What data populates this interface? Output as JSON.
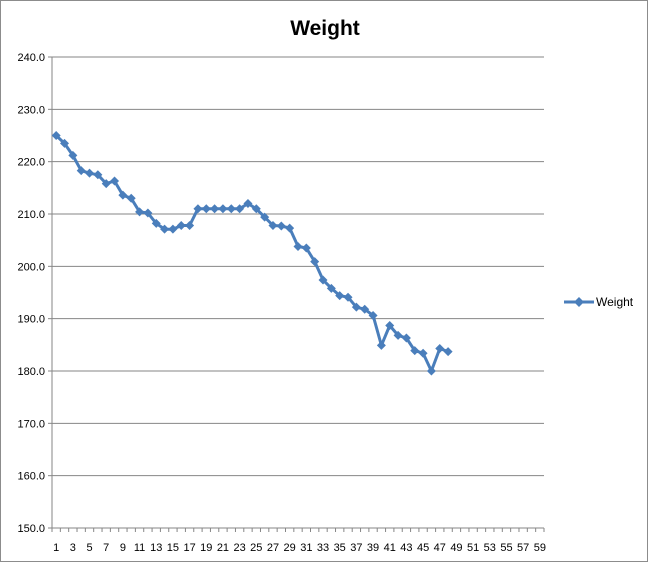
{
  "chart_data": {
    "type": "line",
    "title": "Weight",
    "xlabel": "",
    "ylabel": "",
    "xlim": [
      1,
      59
    ],
    "ylim": [
      150,
      240
    ],
    "ytick_labels": [
      "150.0",
      "160.0",
      "170.0",
      "180.0",
      "190.0",
      "200.0",
      "210.0",
      "220.0",
      "230.0",
      "240.0"
    ],
    "xtick_labels": [
      "1",
      "3",
      "5",
      "7",
      "9",
      "11",
      "13",
      "15",
      "17",
      "19",
      "21",
      "23",
      "25",
      "27",
      "29",
      "31",
      "33",
      "35",
      "37",
      "39",
      "41",
      "43",
      "45",
      "47",
      "49",
      "51",
      "53",
      "55",
      "57",
      "59"
    ],
    "grid": "horizontal",
    "legend": "right",
    "series": [
      {
        "name": "Weight",
        "color": "#4a7ebb",
        "marker": "diamond",
        "x": [
          1,
          2,
          3,
          4,
          5,
          6,
          7,
          8,
          9,
          10,
          11,
          12,
          13,
          14,
          15,
          16,
          17,
          18,
          19,
          20,
          21,
          22,
          23,
          24,
          25,
          26,
          27,
          28,
          29,
          30,
          31,
          32,
          33,
          34,
          35,
          36,
          37,
          38,
          39,
          40,
          41,
          42,
          43,
          44,
          45,
          46,
          47,
          48
        ],
        "values": [
          225.0,
          223.5,
          221.2,
          218.3,
          217.8,
          217.5,
          215.8,
          216.3,
          213.6,
          213.0,
          210.4,
          210.2,
          208.2,
          207.1,
          207.1,
          207.8,
          207.8,
          211.0,
          211.0,
          211.0,
          211.0,
          211.0,
          211.0,
          212.0,
          211.0,
          209.4,
          207.8,
          207.7,
          207.3,
          203.8,
          203.5,
          200.9,
          197.4,
          195.8,
          194.4,
          194.1,
          192.2,
          191.8,
          190.6,
          184.9,
          188.7,
          186.8,
          186.3,
          183.9,
          183.4,
          180.0,
          184.3,
          183.7
        ]
      }
    ]
  }
}
